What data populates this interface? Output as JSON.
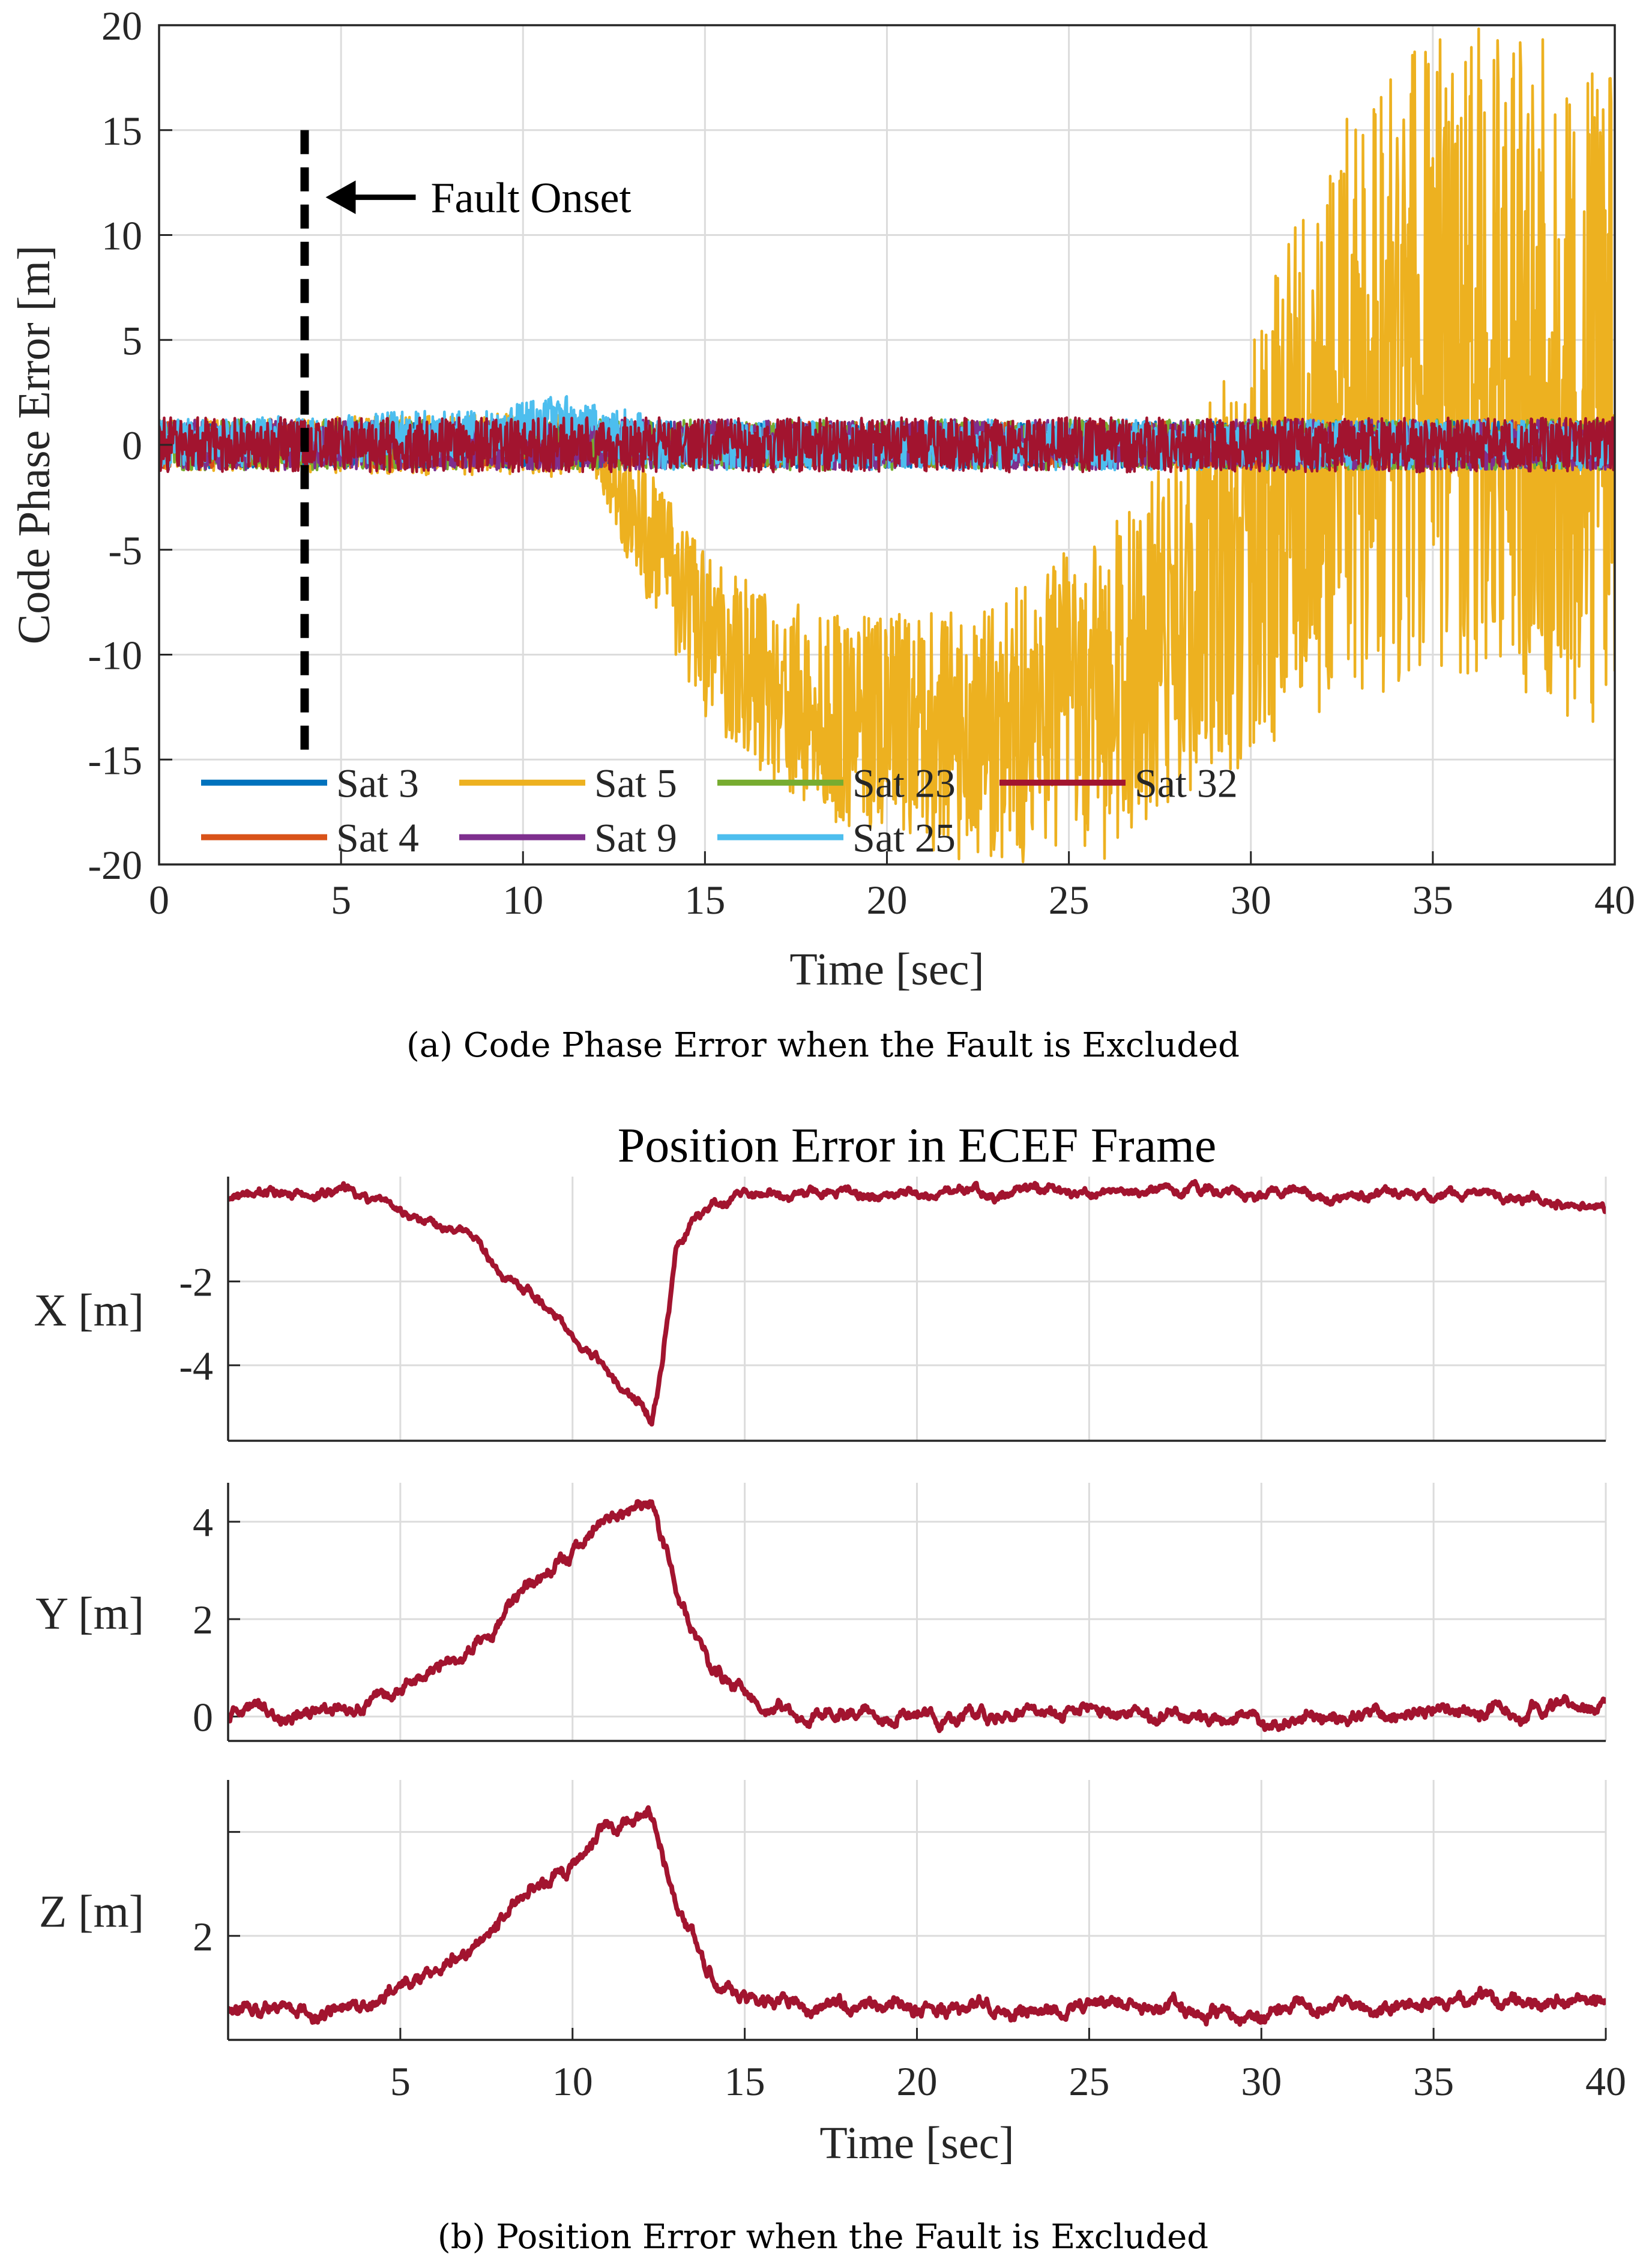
{
  "figure_a": {
    "caption": "(a)  Code Phase Error when the Fault is Excluded",
    "annotation": "Fault Onset",
    "fault_line_label": "",
    "chart_data": {
      "type": "line",
      "title": "",
      "xlabel": "Time [sec]",
      "ylabel": "Code Phase Error [m]",
      "xlim": [
        0,
        40
      ],
      "ylim": [
        -20,
        20
      ],
      "xticks": [
        "0",
        "5",
        "10",
        "15",
        "20",
        "25",
        "30",
        "35",
        "40"
      ],
      "yticks": [
        "20",
        "15",
        "10",
        "5",
        "0",
        "-5",
        "-10",
        "-15",
        "-20"
      ],
      "fault_onset_time": 4,
      "legend_position": "bottom-left",
      "series": [
        {
          "name": "Sat 3",
          "color": "#0072BD",
          "x": [
            0,
            40
          ],
          "mean": [
            0,
            0
          ],
          "noise": 1.1
        },
        {
          "name": "Sat 4",
          "color": "#D95319",
          "x": [
            0,
            40
          ],
          "mean": [
            0,
            0
          ],
          "noise": 1.1
        },
        {
          "name": "Sat 5",
          "color": "#EDB120",
          "x": [
            0,
            12,
            13,
            15,
            18,
            22,
            26,
            30,
            32,
            36,
            40
          ],
          "mean": [
            0,
            0,
            -3,
            -9,
            -13,
            -14,
            -12,
            -5,
            1,
            5,
            2
          ],
          "noise": [
            1.2,
            1.6,
            3,
            4,
            5,
            6,
            8,
            10,
            14,
            16,
            16
          ]
        },
        {
          "name": "Sat 23",
          "color": "#77AC30",
          "x": [
            0,
            40
          ],
          "mean": [
            0,
            0
          ],
          "noise": 1.2
        },
        {
          "name": "Sat 9",
          "color": "#7E2F8E",
          "x": [
            0,
            40
          ],
          "mean": [
            0,
            0
          ],
          "noise": 1.2
        },
        {
          "name": "Sat 25",
          "color": "#4DBEEE",
          "x": [
            0,
            9,
            11,
            12.5,
            14,
            40
          ],
          "mean": [
            0,
            0.5,
            1.2,
            0.6,
            0,
            0
          ],
          "noise": 1.2
        },
        {
          "name": "Sat 32",
          "color": "#A2142F",
          "x": [
            0,
            40
          ],
          "mean": [
            0,
            0
          ],
          "noise": 1.3
        }
      ]
    }
  },
  "figure_b": {
    "caption": "(b)  Position Error when the Fault is Excluded",
    "chart_data": [
      {
        "type": "line",
        "title": "Position Error in ECEF Frame",
        "ylabel": "X [m]",
        "xlim": [
          0,
          40
        ],
        "ylim": [
          -5.8,
          0.5
        ],
        "yticks": [
          "-2",
          "-4"
        ],
        "ytick_values": [
          -2,
          -4
        ],
        "color": "#A2142F",
        "x": [
          0,
          1,
          3,
          4.5,
          6,
          7,
          8,
          9,
          10,
          11,
          12,
          12.3,
          12.6,
          13.0,
          13.5,
          14,
          15,
          17,
          20,
          21,
          22,
          24,
          26,
          28,
          30,
          32,
          34,
          36,
          38,
          40
        ],
        "y": [
          0,
          0.1,
          0.1,
          0,
          -0.6,
          -1.0,
          -1.7,
          -2.4,
          -3.3,
          -4.2,
          -4.8,
          -5.4,
          -4.0,
          -1.3,
          -0.5,
          -0.3,
          0.1,
          0.1,
          0.1,
          0.1,
          0.1,
          0.1,
          0.1,
          0.2,
          0.1,
          0.0,
          0.1,
          0.1,
          0.0,
          -0.2
        ],
        "noise": 0.1
      },
      {
        "type": "line",
        "ylabel": "Y [m]",
        "xlim": [
          0,
          40
        ],
        "ylim": [
          -0.5,
          4.8
        ],
        "yticks": [
          "4",
          "2",
          "0"
        ],
        "ytick_values": [
          4,
          2,
          0
        ],
        "color": "#A2142F",
        "x": [
          0,
          2,
          4,
          5,
          7,
          8,
          9,
          10,
          11,
          12,
          12.3,
          13,
          14,
          15,
          17,
          20,
          25,
          30,
          35,
          40
        ],
        "y": [
          0.1,
          0.0,
          0.2,
          0.5,
          1.4,
          2.1,
          2.9,
          3.3,
          4.1,
          4.3,
          4.4,
          2.6,
          1.0,
          0.4,
          0.0,
          0.0,
          0.1,
          0.0,
          0.1,
          0.2
        ],
        "noise": 0.12
      },
      {
        "type": "line",
        "ylabel": "Z [m]",
        "xlabel": "Time [sec]",
        "xlim": [
          0,
          40
        ],
        "ylim": [
          0.0,
          5.0
        ],
        "yticks": [
          "2"
        ],
        "ytick_values": [
          2
        ],
        "extra_tick_values": [
          4
        ],
        "xticks": [
          "5",
          "10",
          "15",
          "20",
          "25",
          "30",
          "35",
          "40"
        ],
        "color": "#A2142F",
        "x": [
          0,
          2,
          4,
          5,
          7,
          8,
          9,
          10,
          11,
          12,
          12.3,
          13,
          14,
          15,
          17,
          20,
          25,
          30,
          35,
          40
        ],
        "y": [
          0.6,
          0.6,
          0.7,
          1.1,
          1.7,
          2.3,
          2.9,
          3.3,
          4.0,
          4.2,
          4.3,
          2.6,
          1.2,
          0.8,
          0.6,
          0.6,
          0.6,
          0.6,
          0.7,
          0.7
        ],
        "noise": 0.12
      }
    ]
  }
}
